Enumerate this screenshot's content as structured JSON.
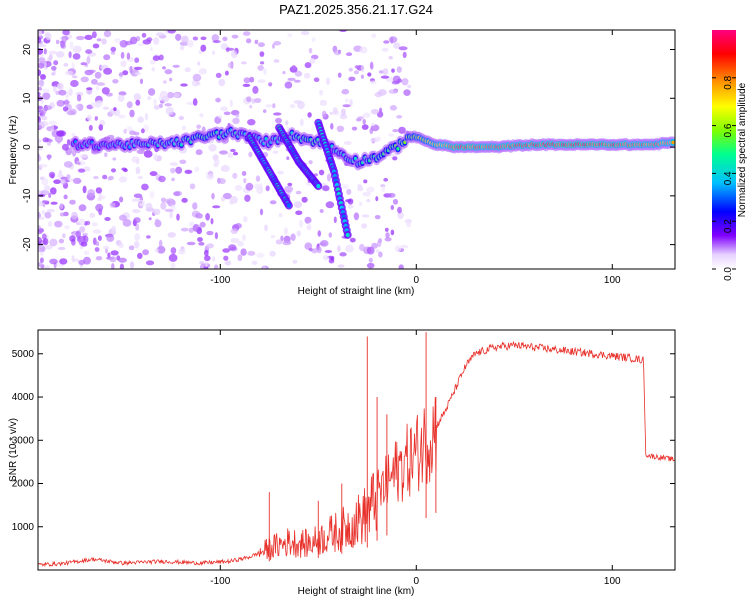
{
  "title": "PAZ1.2025.356.21.17.G24",
  "chart_data": [
    {
      "type": "heatmap",
      "title": "PAZ1.2025.356.21.17.G24",
      "xlabel": "Height of straight line (km)",
      "ylabel": "Frequency (Hz)",
      "xlim": [
        -193,
        132
      ],
      "ylim": [
        -25,
        24
      ],
      "x_ticks": [
        -100,
        0,
        100
      ],
      "x_tick_labels": [
        "-100",
        "0",
        "100"
      ],
      "y_ticks": [
        -20,
        -10,
        0,
        10,
        20
      ],
      "y_tick_labels": [
        "-20",
        "-10",
        "0",
        "10",
        "20"
      ],
      "colorbar": {
        "label": "Normalized spectral amplitude",
        "range": [
          0,
          1
        ],
        "ticks": [
          0.0,
          0.2,
          0.4,
          0.6,
          0.8
        ],
        "tick_labels": [
          "0.0",
          "0.2",
          "0.4",
          "0.6",
          "0.8"
        ],
        "colormap": [
          "#ffffff",
          "#e0c8ff",
          "#8000ff",
          "#0000ff",
          "#00c0ff",
          "#00ff90",
          "#80ff00",
          "#ffff00",
          "#ff8000",
          "#ff0000",
          "#ff0080"
        ]
      },
      "ridge": {
        "description": "dominant frequency ridge",
        "x": [
          -170,
          -140,
          -120,
          -110,
          -95,
          -85,
          -75,
          -65,
          -55,
          -45,
          -38,
          -30,
          -20,
          -10,
          -3,
          0,
          10,
          20,
          40,
          60,
          80,
          100,
          120,
          132
        ],
        "freq": [
          0.5,
          0.5,
          1.0,
          2.0,
          3.0,
          2.0,
          1.0,
          2.5,
          1.5,
          0.5,
          -1.5,
          -3.0,
          -2.0,
          0.0,
          2.5,
          2.0,
          0.5,
          0.0,
          0.0,
          0.5,
          0.5,
          0.5,
          0.5,
          1.0
        ],
        "amplitude": [
          0.35,
          0.4,
          0.45,
          0.5,
          0.45,
          0.4,
          0.4,
          0.45,
          0.5,
          0.45,
          0.4,
          0.45,
          0.5,
          0.55,
          0.6,
          0.65,
          0.75,
          0.9,
          0.85,
          0.9,
          0.95,
          0.9,
          0.85,
          0.8
        ]
      },
      "descending_branches": [
        {
          "x": [
            -85,
            -75,
            -65
          ],
          "freq": [
            2,
            -5,
            -12
          ]
        },
        {
          "x": [
            -70,
            -60,
            -50
          ],
          "freq": [
            4,
            -3,
            -8
          ]
        },
        {
          "x": [
            -50,
            -42,
            -35
          ],
          "freq": [
            5,
            -5,
            -18
          ]
        }
      ]
    },
    {
      "type": "line",
      "xlabel": "Height of straight line (km)",
      "ylabel": "SNR (10 * v/v)",
      "xlim": [
        -193,
        132
      ],
      "ylim": [
        0,
        5550
      ],
      "x_ticks": [
        -100,
        0,
        100
      ],
      "x_tick_labels": [
        "-100",
        "0",
        "100"
      ],
      "y_ticks": [
        1000,
        2000,
        3000,
        4000,
        5000
      ],
      "y_tick_labels": [
        "1000",
        "2000",
        "3000",
        "4000",
        "5000"
      ],
      "color": "#e8302a",
      "series": [
        {
          "name": "SNR",
          "x": [
            -193,
            -180,
            -165,
            -150,
            -130,
            -110,
            -95,
            -85,
            -75,
            -65,
            -55,
            -45,
            -35,
            -25,
            -20,
            -15,
            -10,
            -5,
            0,
            5,
            10,
            15,
            20,
            25,
            30,
            40,
            50,
            60,
            70,
            80,
            90,
            100,
            110,
            116,
            117,
            118,
            125,
            132
          ],
          "y": [
            120,
            150,
            250,
            160,
            200,
            160,
            200,
            300,
            500,
            650,
            600,
            800,
            1000,
            1300,
            1700,
            2000,
            2300,
            2500,
            2700,
            3000,
            3300,
            3700,
            4200,
            4700,
            5000,
            5150,
            5200,
            5150,
            5100,
            5050,
            5000,
            4950,
            4900,
            4850,
            2700,
            2650,
            2600,
            2550
          ]
        }
      ],
      "spikes": [
        {
          "x": -75,
          "y": 1800
        },
        {
          "x": -50,
          "y": 1600
        },
        {
          "x": -38,
          "y": 2000
        },
        {
          "x": -25,
          "y": 5400
        },
        {
          "x": -20,
          "y": 4000
        },
        {
          "x": -15,
          "y": 3600
        },
        {
          "x": 5,
          "y": 5500
        },
        {
          "x": 10,
          "y": 4000
        }
      ]
    }
  ]
}
